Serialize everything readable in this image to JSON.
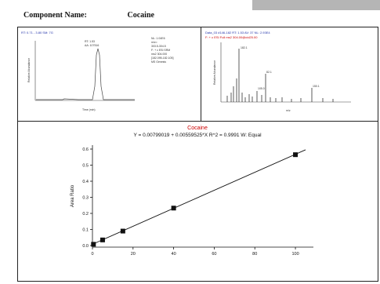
{
  "report": {
    "component_label": "Component Name:",
    "component_value": "Cocaine"
  },
  "chromatogram": {
    "header": "RT: 0.71 - 3.80  SM: 7G",
    "peak_label_rt": "RT: 1.53",
    "peak_label_area": "AA: 107516",
    "info_lines": [
      "NL: 1.04E6",
      "m/z=",
      "303.5-304.5",
      "F: + c ESI SRM",
      "ms2 304.000",
      "[182.095-182.105]",
      "MS Genesis"
    ],
    "xlabel": "Time (min)",
    "ylabel": "Relative Abundance",
    "color": "#444444"
  },
  "spectrum": {
    "header": "Data_03 #146-182  RT: 1.53  AV: 37  NL: 2.93E4",
    "header2": "F: + c ESI Full ms2 304.00@cid25.00",
    "peak_labels": [
      "182.1",
      "82.1",
      "105.0",
      "150.1"
    ],
    "xlabel": "m/z",
    "ylabel": "Relative Abundance",
    "accent_color": "#cc0000"
  },
  "chart_data": {
    "type": "scatter",
    "title": "Cocaine",
    "subtitle": "Y = 0.00799019 + 0.00559525*X   R^2 = 0.9991   W: Equal",
    "xlabel": "",
    "ylabel": "Area Ratio",
    "xlim": [
      0,
      105
    ],
    "ylim": [
      0,
      0.6
    ],
    "x_ticks": [
      "0",
      "20",
      "40",
      "60",
      "80",
      "100"
    ],
    "y_ticks": [
      "0.0",
      "0.1",
      "0.2",
      "0.3",
      "0.4",
      "0.5",
      "0.6"
    ],
    "fit": {
      "intercept": 0.00799019,
      "slope": 0.00559525
    },
    "points": [
      {
        "x": 0.5,
        "y": 0.008
      },
      {
        "x": 5,
        "y": 0.035
      },
      {
        "x": 15,
        "y": 0.09
      },
      {
        "x": 40,
        "y": 0.233
      },
      {
        "x": 100,
        "y": 0.565
      }
    ],
    "title_color": "#cc0000",
    "grid": false
  }
}
